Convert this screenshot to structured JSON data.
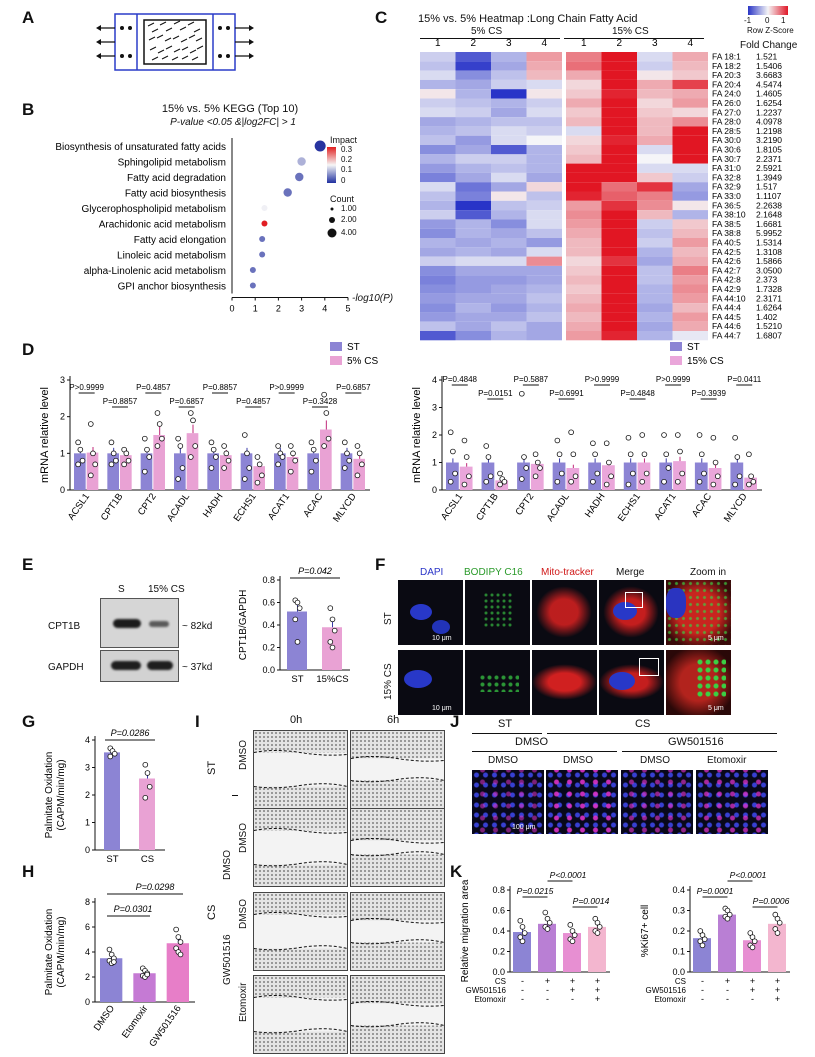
{
  "panels": {
    "A": "A",
    "B": "B",
    "C": "C",
    "D": "D",
    "E": "E",
    "F": "F",
    "G": "G",
    "H": "H",
    "I": "I",
    "J": "J",
    "K": "K"
  },
  "panel_b": {
    "title_line1": "15% vs. 5% KEGG (Top 10)",
    "title_line2": "P-value <0.05 &|log2FC| > 1",
    "xlabel": "-log10(P)",
    "legend_impact_title": "Impact",
    "legend_impact_ticks": [
      "0.3",
      "0.2",
      "0.1",
      "0"
    ],
    "legend_count_title": "Count",
    "legend_count_items": [
      "1.00",
      "2.00",
      "4.00"
    ],
    "xticks": [
      "0",
      "1",
      "2",
      "3",
      "4",
      "5"
    ]
  },
  "panel_c": {
    "title": "15% vs. 5% Heatmap :Long Chain Fatty Acid",
    "legend_ticks": [
      "-1",
      "0",
      "1"
    ],
    "legend_label": "Row Z-Score",
    "group1": "5% CS",
    "group2": "15% CS",
    "columns": [
      "1",
      "2",
      "3",
      "4",
      "1",
      "2",
      "3",
      "4"
    ],
    "fc_header": "Fold Change"
  },
  "panel_d": {
    "ylabel": "mRNA relative level",
    "left_legend": [
      "ST",
      "5% CS"
    ],
    "right_legend": [
      "ST",
      "15% CS"
    ],
    "genes": [
      "ACSL1",
      "CPT1B",
      "CPT2",
      "ACADL",
      "HADH",
      "ECHS1",
      "ACAT1",
      "ACAC",
      "MLYCD"
    ],
    "left_p": [
      "P>0.9999",
      "P=0.8857",
      "P=0.4857",
      "P=0.6857",
      "P=0.8857",
      "P=0.4857",
      "P>0.9999",
      "P=0.3428",
      "P=0.6857"
    ],
    "right_p": [
      "P=0.4848",
      "P=0.0151",
      "P=0.5887",
      "P=0.6991",
      "P>0.9999",
      "P=0.4848",
      "P>0.9999",
      "P=0.3939",
      "P=0.0411"
    ],
    "left_yticks": [
      "0",
      "1",
      "2",
      "3"
    ],
    "right_yticks": [
      "0",
      "1",
      "2",
      "3",
      "4"
    ]
  },
  "panel_e": {
    "lane_labels": [
      "S",
      "15% CS"
    ],
    "bands": [
      "CPT1B",
      "GAPDH"
    ],
    "sizes": [
      "~ 82kd",
      "~ 37kd"
    ],
    "ylabel": "CPT1B/GAPDH",
    "p": "P=0.042",
    "xticks": [
      "ST",
      "15%CS"
    ],
    "yticks": [
      "0.0",
      "0.2",
      "0.4",
      "0.6",
      "0.8"
    ]
  },
  "panel_f": {
    "channels": [
      "DAPI",
      "BODIPY C16",
      "Mito-tracker",
      "Merge",
      "Zoom in"
    ],
    "rows": [
      "ST",
      "15% CS"
    ],
    "scale_main": "10 μm",
    "scale_zoom": "5 μm"
  },
  "panel_g": {
    "ylabel": "Palmitate Oxidation\n(CAPM/min/mg)",
    "p": "P=0.0286",
    "xticks": [
      "ST",
      "CS"
    ],
    "yticks": [
      "0",
      "1",
      "2",
      "3",
      "4"
    ]
  },
  "panel_h": {
    "ylabel": "Palmitate Oxidation\n(CAPM/min/mg)",
    "p1": "P=0.0298",
    "p2": "P=0.0301",
    "xticks": [
      "DMSO",
      "Etomoxir",
      "GW501516"
    ],
    "yticks": [
      "0",
      "2",
      "4",
      "6",
      "8"
    ]
  },
  "panel_i": {
    "times": [
      "0h",
      "6h"
    ],
    "row_labels": [
      "DMSO",
      "DMSO",
      "DMSO",
      "Etomoxir"
    ],
    "group_st": "ST",
    "group_cs": "CS",
    "group_dmso": "DMSO",
    "group_gw": "GW501516",
    "scale": "400 μm"
  },
  "panel_j": {
    "st": "ST",
    "cs": "CS",
    "dmso_top": "DMSO",
    "gw": "GW501516",
    "labels": [
      "DMSO",
      "DMSO",
      "DMSO",
      "Etomoxir"
    ],
    "scale": "100 μm"
  },
  "panel_k": {
    "left_ylabel": "Relative migration area",
    "right_ylabel": "%Ki67+ cell",
    "left_p": [
      "P=0.0215",
      "P<0.0001",
      "P=0.0014"
    ],
    "right_p": [
      "P=0.0001",
      "P<0.0001",
      "P=0.0006"
    ],
    "rows": [
      "CS",
      "GW501516",
      "Etomoxir"
    ],
    "signs": [
      [
        "-",
        "+",
        "+",
        "+"
      ],
      [
        "-",
        "-",
        "+",
        "+"
      ],
      [
        "-",
        "-",
        "-",
        "+"
      ]
    ],
    "left_yticks": [
      "0.0",
      "0.2",
      "0.4",
      "0.6",
      "0.8"
    ],
    "right_yticks": [
      "0.0",
      "0.1",
      "0.2",
      "0.3",
      "0.4"
    ]
  },
  "chart_data": [
    {
      "type": "scatter",
      "title": "15% vs. 5% KEGG (Top 10)",
      "xlabel": "-log10(P)",
      "xlim": [
        0,
        5
      ],
      "categories": [
        "Biosynthesis of unsaturated fatty acids",
        "Sphingolipid metabolism",
        "Fatty acid degradation",
        "Fatty acid biosynthesis",
        "Glycerophospholipid metabolism",
        "Arachidonic acid metabolism",
        "Fatty acid elongation",
        "Linoleic acid metabolism",
        "alpha-Linolenic acid metabolism",
        "GPI anchor biosynthesis"
      ],
      "x": [
        3.8,
        3.0,
        2.9,
        2.4,
        1.4,
        1.4,
        1.3,
        1.3,
        0.9,
        0.9
      ],
      "impact": [
        0.0,
        0.1,
        0.05,
        0.05,
        0.15,
        0.3,
        0.05,
        0.05,
        0.05,
        0.05
      ],
      "count": [
        4,
        2,
        2,
        2,
        1,
        1,
        1,
        1,
        1,
        1
      ]
    },
    {
      "type": "heatmap",
      "title": "15% vs. 5% Heatmap :Long Chain Fatty Acid",
      "rows": [
        "FA 18:1",
        "FA 18:2",
        "FA 20:3",
        "FA 20:4",
        "FA 24:0",
        "FA 26:0",
        "FA 27:0",
        "FA 28:0",
        "FA 28:5",
        "FA 30:0",
        "FA 30:6",
        "FA 30:7",
        "FA 31:0",
        "FA 32:8",
        "FA 32:9",
        "FA 33:0",
        "FA 36:5",
        "FA 38:10",
        "FA 38:5",
        "FA 38:8",
        "FA 40:5",
        "FA 42:5",
        "FA 42:6",
        "FA 42:7",
        "FA 42:8",
        "FA 42:9",
        "FA 44:10",
        "FA 44:4",
        "FA 44:5",
        "FA 44:6",
        "FA 44:7"
      ],
      "fold_change": [
        "1.521",
        "1.5406",
        "3.6683",
        "4.5474",
        "1.4605",
        "1.6254",
        "1.2237",
        "4.0978",
        "1.2198",
        "3.2190",
        "1.8105",
        "2.2371",
        "2.5921",
        "1.3949",
        "1.517",
        "1.1107",
        "2.2638",
        "2.1648",
        "1.6681",
        "5.9952",
        "1.5314",
        "1.3108",
        "1.5866",
        "3.0500",
        "2.373",
        "1.7328",
        "2.3171",
        "1.6264",
        "1.402",
        "1.5210",
        "1.6807"
      ],
      "values": [
        [
          -0.3,
          -1.2,
          -0.5,
          0.6,
          0.8,
          1.6,
          -0.2,
          0.5
        ],
        [
          -0.4,
          -1.4,
          -0.6,
          0.5,
          0.9,
          1.5,
          -0.3,
          0.4
        ],
        [
          -0.2,
          -0.8,
          -0.4,
          0.4,
          0.5,
          1.8,
          0.1,
          0.3
        ],
        [
          -0.5,
          -0.6,
          -0.3,
          -0.2,
          0.2,
          1.7,
          0.5,
          1.2
        ],
        [
          0.1,
          -0.5,
          -1.6,
          0.1,
          0.3,
          1.4,
          0.4,
          0.5
        ],
        [
          -0.3,
          -0.4,
          -0.5,
          -0.3,
          0.5,
          1.9,
          0.2,
          0.6
        ],
        [
          -0.2,
          -0.3,
          -0.6,
          -0.2,
          0.3,
          1.8,
          0.3,
          0.2
        ],
        [
          -0.6,
          -0.5,
          -0.4,
          -0.4,
          0.4,
          1.9,
          0.4,
          0.7
        ],
        [
          -0.5,
          -0.4,
          -0.2,
          -0.3,
          -0.2,
          1.5,
          0.4,
          1.8
        ],
        [
          -0.4,
          -0.7,
          -0.2,
          0.0,
          0.2,
          1.4,
          0.5,
          1.7
        ],
        [
          -0.8,
          -0.6,
          -1.2,
          -0.5,
          0.3,
          1.6,
          -0.2,
          1.7
        ],
        [
          -0.5,
          -0.3,
          -0.3,
          -0.5,
          0.4,
          1.7,
          0.0,
          1.6
        ],
        [
          -0.7,
          -0.5,
          -0.4,
          -0.5,
          1.6,
          1.8,
          -0.2,
          -0.2
        ],
        [
          -0.9,
          -0.6,
          -0.2,
          -0.6,
          1.5,
          1.7,
          0.3,
          -0.3
        ],
        [
          -0.2,
          -1.0,
          -0.6,
          0.2,
          1.5,
          0.9,
          1.3,
          -0.6
        ],
        [
          -0.4,
          -0.9,
          0.1,
          -0.4,
          1.4,
          1.0,
          0.8,
          -0.7
        ],
        [
          -0.5,
          -1.5,
          -0.4,
          -0.3,
          0.6,
          1.3,
          0.7,
          0.1
        ],
        [
          -0.3,
          -1.2,
          -0.5,
          -0.2,
          0.7,
          1.6,
          0.4,
          -0.5
        ],
        [
          -0.7,
          -0.5,
          -0.8,
          -0.2,
          0.6,
          1.7,
          -0.3,
          0.3
        ],
        [
          -0.8,
          -0.5,
          -0.6,
          -0.4,
          0.5,
          1.9,
          -0.4,
          0.4
        ],
        [
          -0.5,
          -0.6,
          -0.5,
          -0.7,
          0.4,
          1.8,
          -0.3,
          0.6
        ],
        [
          -0.6,
          -0.5,
          -0.6,
          -0.2,
          0.4,
          1.6,
          -0.5,
          0.4
        ],
        [
          -0.3,
          -0.2,
          -0.2,
          0.7,
          0.2,
          1.3,
          -0.6,
          0.5
        ],
        [
          -0.8,
          -0.6,
          -0.6,
          -0.6,
          0.3,
          1.9,
          -0.4,
          0.8
        ],
        [
          -0.9,
          -0.7,
          -0.7,
          -0.6,
          0.4,
          1.9,
          -0.4,
          0.6
        ],
        [
          -0.8,
          -0.7,
          -0.6,
          -0.5,
          0.3,
          1.8,
          -0.5,
          0.7
        ],
        [
          -0.7,
          -0.6,
          -0.6,
          -0.4,
          0.4,
          1.9,
          -0.5,
          0.6
        ],
        [
          -0.8,
          -0.5,
          -0.7,
          -0.5,
          0.5,
          1.6,
          -0.6,
          0.4
        ],
        [
          -0.7,
          -0.6,
          -0.6,
          -0.4,
          0.4,
          1.7,
          -0.5,
          0.6
        ],
        [
          -0.4,
          -0.6,
          -0.4,
          -0.6,
          0.5,
          1.7,
          -0.6,
          0.5
        ],
        [
          -1.2,
          -0.8,
          -0.5,
          -0.6,
          0.6,
          1.4,
          -0.5,
          -0.1
        ]
      ]
    },
    {
      "type": "bar",
      "categories": [
        "ACSL1",
        "CPT1B",
        "CPT2",
        "ACADL",
        "HADH",
        "ECHS1",
        "ACAT1",
        "ACAC",
        "MLYCD"
      ],
      "ylabel": "mRNA relative level",
      "ylim": [
        0,
        3
      ],
      "series": [
        {
          "name": "ST",
          "values": [
            1.0,
            1.0,
            1.0,
            1.0,
            1.0,
            1.0,
            1.0,
            1.0,
            1.0
          ]
        },
        {
          "name": "5% CS",
          "values": [
            1.02,
            0.95,
            1.5,
            1.55,
            0.95,
            0.65,
            0.9,
            1.65,
            0.85
          ]
        }
      ]
    },
    {
      "type": "bar",
      "categories": [
        "ACSL1",
        "CPT1B",
        "CPT2",
        "ACADL",
        "HADH",
        "ECHS1",
        "ACAT1",
        "ACAC",
        "MLYCD"
      ],
      "ylabel": "mRNA relative level",
      "ylim": [
        0,
        4
      ],
      "series": [
        {
          "name": "ST",
          "values": [
            1.0,
            1.0,
            1.0,
            1.0,
            1.0,
            1.0,
            1.0,
            1.0,
            1.0
          ]
        },
        {
          "name": "15% CS",
          "values": [
            0.85,
            0.35,
            0.95,
            0.8,
            0.9,
            1.0,
            1.05,
            0.8,
            0.45
          ]
        }
      ]
    },
    {
      "type": "bar",
      "categories": [
        "ST",
        "15%CS"
      ],
      "ylabel": "CPT1B/GAPDH",
      "ylim": [
        0,
        0.8
      ],
      "values": [
        0.52,
        0.38
      ],
      "points": [
        [
          0.62,
          0.6,
          0.55,
          0.45,
          0.25
        ],
        [
          0.55,
          0.45,
          0.35,
          0.25,
          0.2
        ]
      ]
    },
    {
      "type": "bar",
      "categories": [
        "ST",
        "CS"
      ],
      "ylabel": "Palmitate Oxidation (CAPM/min/mg)",
      "ylim": [
        0,
        4
      ],
      "values": [
        3.55,
        2.6
      ],
      "points": [
        [
          3.7,
          3.6,
          3.5,
          3.4
        ],
        [
          3.1,
          2.8,
          2.3,
          1.9
        ]
      ]
    },
    {
      "type": "bar",
      "categories": [
        "DMSO",
        "Etomoxir",
        "GW501516"
      ],
      "ylabel": "Palmitate Oxidation (CAPM/min/mg)",
      "ylim": [
        0,
        8
      ],
      "values": [
        3.5,
        2.3,
        4.7
      ],
      "points": [
        [
          4.2,
          3.8,
          3.5,
          3.3,
          3.1,
          3.2
        ],
        [
          2.7,
          2.5,
          2.3,
          2.1,
          2.0,
          2.2
        ],
        [
          5.8,
          5.2,
          4.8,
          4.3,
          4.0,
          3.8
        ]
      ]
    },
    {
      "type": "bar",
      "categories": [
        "1",
        "2",
        "3",
        "4"
      ],
      "ylabel": "Relative migration area",
      "ylim": [
        0,
        0.8
      ],
      "values": [
        0.39,
        0.47,
        0.38,
        0.44
      ],
      "points": [
        [
          0.5,
          0.44,
          0.38,
          0.34,
          0.3
        ],
        [
          0.58,
          0.52,
          0.48,
          0.44,
          0.42
        ],
        [
          0.46,
          0.4,
          0.36,
          0.32,
          0.3
        ],
        [
          0.52,
          0.48,
          0.44,
          0.4,
          0.38
        ]
      ]
    },
    {
      "type": "bar",
      "categories": [
        "1",
        "2",
        "3",
        "4"
      ],
      "ylabel": "%Ki67+ cell",
      "ylim": [
        0,
        0.4
      ],
      "values": [
        0.165,
        0.28,
        0.155,
        0.235
      ],
      "points": [
        [
          0.2,
          0.18,
          0.16,
          0.15,
          0.13
        ],
        [
          0.31,
          0.3,
          0.28,
          0.27,
          0.26
        ],
        [
          0.19,
          0.17,
          0.15,
          0.13,
          0.12
        ],
        [
          0.28,
          0.26,
          0.24,
          0.21,
          0.19
        ]
      ]
    }
  ]
}
